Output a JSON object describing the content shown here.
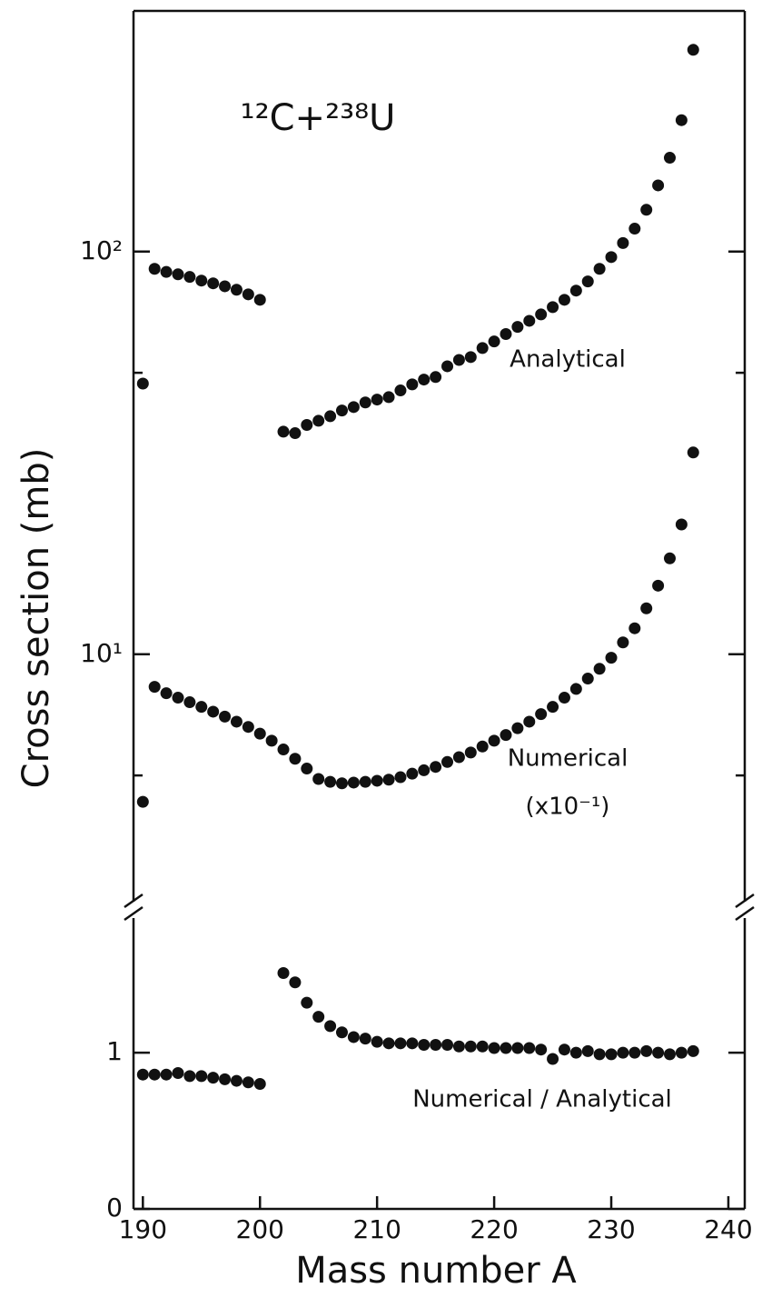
{
  "chart_data": {
    "type": "scatter",
    "annotation": "¹²C+²³⁸U",
    "annotation_numerical": "(x10⁻¹)",
    "xlabel": "Mass number A",
    "ylabel": "Cross section (mb)",
    "x": [
      190,
      191,
      192,
      193,
      194,
      195,
      196,
      197,
      198,
      199,
      200,
      201,
      202,
      203,
      204,
      205,
      206,
      207,
      208,
      209,
      210,
      211,
      212,
      213,
      214,
      215,
      216,
      217,
      218,
      219,
      220,
      221,
      222,
      223,
      224,
      225,
      226,
      227,
      228,
      229,
      230,
      231,
      232,
      233,
      234,
      235,
      236,
      237
    ],
    "xlim": [
      189.2,
      241.4
    ],
    "xticks": [
      190,
      200,
      210,
      220,
      230,
      240
    ],
    "ylim": [
      2.33,
      396
    ],
    "log_scale": "y",
    "yticks": [
      {
        "value": 100,
        "label": "10²"
      },
      {
        "value": 10,
        "label": "10¹"
      }
    ],
    "yminorticks": [
      50,
      5
    ],
    "y2lim": [
      0,
      1.92
    ],
    "y2ticks": [
      0,
      1
    ],
    "series": [
      {
        "name": "Analytical",
        "color": "#111111",
        "values": [
          47,
          90.6,
          89,
          87.8,
          86.5,
          84.7,
          83.4,
          82,
          80.4,
          78.3,
          75.9,
          null,
          35.7,
          35.4,
          37.1,
          38.0,
          39.0,
          40.3,
          41.1,
          42.2,
          42.9,
          43.5,
          45.2,
          46.8,
          48.1,
          48.8,
          51.9,
          53.8,
          54.7,
          57.6,
          59.8,
          62.4,
          65.0,
          67.3,
          69.8,
          72.8,
          75.9,
          80.0,
          84.3,
          90.6,
          96.9,
          105,
          114,
          127,
          146,
          171,
          212,
          317
        ]
      },
      {
        "name": "Numerical",
        "color": "#111111",
        "values": [
          4.3,
          8.3,
          8.0,
          7.8,
          7.6,
          7.4,
          7.2,
          7.0,
          6.8,
          6.6,
          6.35,
          6.1,
          5.8,
          5.5,
          5.2,
          4.9,
          4.82,
          4.78,
          4.8,
          4.82,
          4.85,
          4.88,
          4.95,
          5.05,
          5.15,
          5.25,
          5.4,
          5.55,
          5.7,
          5.9,
          6.1,
          6.3,
          6.55,
          6.8,
          7.1,
          7.4,
          7.8,
          8.2,
          8.7,
          9.2,
          9.8,
          10.7,
          11.6,
          13.0,
          14.8,
          17.3,
          21,
          31.7
        ]
      },
      {
        "name": "Numerical / Analytical",
        "color": "#111111",
        "axis": "y2",
        "values": [
          0.86,
          0.86,
          0.86,
          0.87,
          0.85,
          0.85,
          0.84,
          0.83,
          0.82,
          0.81,
          0.8,
          null,
          1.51,
          1.45,
          1.32,
          1.23,
          1.17,
          1.13,
          1.1,
          1.09,
          1.07,
          1.06,
          1.06,
          1.06,
          1.05,
          1.05,
          1.05,
          1.04,
          1.04,
          1.04,
          1.03,
          1.03,
          1.03,
          1.03,
          1.02,
          0.96,
          1.02,
          1.0,
          1.01,
          0.99,
          0.99,
          1.0,
          1.0,
          1.01,
          1.0,
          0.99,
          1.0,
          1.01
        ]
      }
    ]
  }
}
